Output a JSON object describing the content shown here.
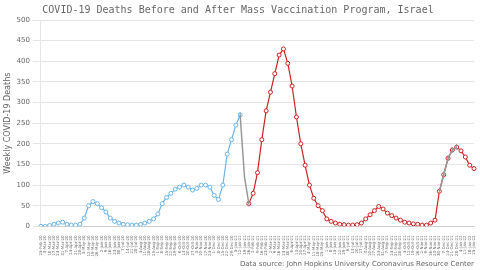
{
  "chart_data": {
    "type": "line",
    "title": "COVID-19 Deaths Before and After Mass Vaccination Program, Israel",
    "ylabel": "Weekly COVID-19 Deaths",
    "annotation": "Data source: John Hopkins University Coronavirus Resource Center",
    "ylim": [
      0,
      500
    ],
    "yticks": [
      0,
      50,
      100,
      150,
      200,
      250,
      300,
      350,
      400,
      450,
      500
    ],
    "grid": true,
    "categories": [
      "25-Feb-20",
      "3-Mar-20",
      "10-Mar-20",
      "17-Mar-20",
      "24-Mar-20",
      "31-Mar-20",
      "7-Apr-20",
      "14-Apr-20",
      "21-Apr-20",
      "28-Apr-20",
      "5-May-20",
      "12-May-20",
      "19-May-20",
      "26-May-20",
      "2-Jun-20",
      "9-Jun-20",
      "16-Jun-20",
      "23-Jun-20",
      "30-Jun-20",
      "7-Jul-20",
      "14-Jul-20",
      "21-Jul-20",
      "28-Jul-20",
      "4-Aug-20",
      "11-Aug-20",
      "18-Aug-20",
      "25-Aug-20",
      "1-Sep-20",
      "8-Sep-20",
      "15-Sep-20",
      "22-Sep-20",
      "29-Sep-20",
      "6-Oct-20",
      "13-Oct-20",
      "20-Oct-20",
      "27-Oct-20",
      "3-Nov-20",
      "10-Nov-20",
      "17-Nov-20",
      "24-Nov-20",
      "1-Dec-20",
      "8-Dec-20",
      "15-Dec-20",
      "22-Dec-20",
      "29-Dec-20",
      "5-Jan-21",
      "12-Jan-21",
      "19-Jan-21",
      "26-Jan-21",
      "2-Feb-21",
      "9-Feb-21",
      "16-Feb-21",
      "23-Feb-21",
      "2-Mar-21",
      "9-Mar-21",
      "16-Mar-21",
      "23-Mar-21",
      "30-Mar-21",
      "6-Apr-21",
      "13-Apr-21",
      "20-Apr-21",
      "27-Apr-21",
      "4-May-21",
      "11-May-21",
      "18-May-21",
      "25-May-21",
      "1-Jun-21",
      "8-Jun-21",
      "15-Jun-21",
      "22-Jun-21",
      "29-Jun-21",
      "6-Jul-21",
      "13-Jul-21",
      "20-Jul-21",
      "27-Jul-21",
      "3-Aug-21",
      "10-Aug-21",
      "17-Aug-21",
      "24-Aug-21",
      "31-Aug-21",
      "7-Sep-21",
      "14-Sep-21",
      "21-Sep-21",
      "28-Sep-21",
      "5-Oct-21",
      "12-Oct-21",
      "19-Oct-21",
      "26-Oct-21",
      "2-Nov-21",
      "9-Nov-21",
      "16-Nov-21",
      "23-Nov-21",
      "30-Nov-21",
      "7-Dec-21",
      "14-Dec-21",
      "21-Dec-21",
      "28-Dec-21",
      "4-Jan-22",
      "11-Jan-22",
      "18-Jan-22",
      "25-Jan-22"
    ],
    "series": [
      {
        "color": "#6ab4e8",
        "marker": "o",
        "values": [
          0,
          0,
          2,
          5,
          8,
          10,
          5,
          3,
          3,
          5,
          20,
          50,
          60,
          55,
          45,
          35,
          20,
          12,
          8,
          5,
          4,
          3,
          3,
          5,
          8,
          12,
          18,
          30,
          55,
          70,
          80,
          90,
          95,
          100,
          95,
          88,
          92,
          100,
          100,
          95,
          75,
          65,
          100,
          175,
          210,
          245,
          270,
          null,
          null,
          null,
          null,
          null,
          null,
          null,
          null,
          null,
          null,
          null,
          null,
          null,
          null,
          null,
          null,
          null,
          null,
          null,
          null,
          null,
          null,
          null,
          null,
          null,
          null,
          null,
          null,
          null,
          null,
          null,
          null,
          null,
          null,
          null,
          null,
          null,
          null,
          null,
          null,
          null,
          null,
          null,
          null,
          null,
          null,
          null,
          null,
          null,
          null,
          null,
          null,
          null,
          null
        ]
      },
      {
        "color": "#999999",
        "marker": "|",
        "values": [
          null,
          null,
          null,
          null,
          null,
          null,
          null,
          null,
          null,
          null,
          null,
          null,
          null,
          null,
          null,
          null,
          null,
          null,
          null,
          null,
          null,
          null,
          null,
          null,
          null,
          null,
          null,
          null,
          null,
          null,
          null,
          null,
          null,
          null,
          null,
          null,
          null,
          null,
          null,
          null,
          null,
          null,
          null,
          null,
          null,
          null,
          270,
          120,
          55,
          null,
          null,
          null,
          null,
          null,
          null,
          null,
          null,
          null,
          null,
          null,
          null,
          null,
          null,
          null,
          null,
          null,
          null,
          null,
          null,
          null,
          null,
          null,
          null,
          null,
          null,
          null,
          null,
          null,
          null,
          null,
          null,
          null,
          null,
          null,
          null,
          null,
          null,
          null,
          null,
          null,
          null,
          null,
          null,
          null,
          null,
          null,
          null,
          null,
          null,
          null,
          null
        ]
      },
      {
        "color": "#cc2222",
        "marker": "o",
        "values": [
          null,
          null,
          null,
          null,
          null,
          null,
          null,
          null,
          null,
          null,
          null,
          null,
          null,
          null,
          null,
          null,
          null,
          null,
          null,
          null,
          null,
          null,
          null,
          null,
          null,
          null,
          null,
          null,
          null,
          null,
          null,
          null,
          null,
          null,
          null,
          null,
          null,
          null,
          null,
          null,
          null,
          null,
          null,
          null,
          null,
          null,
          null,
          null,
          55,
          80,
          130,
          210,
          280,
          325,
          370,
          415,
          430,
          395,
          340,
          265,
          200,
          148,
          100,
          68,
          50,
          38,
          18,
          12,
          8,
          5,
          4,
          3,
          3,
          4,
          8,
          18,
          28,
          38,
          48,
          42,
          32,
          26,
          20,
          15,
          10,
          8,
          6,
          5,
          3,
          3,
          8,
          15,
          85,
          125,
          165,
          185,
          192,
          183,
          168,
          148,
          140
        ]
      },
      {
        "color": "#999999",
        "marker": "|",
        "values": [
          null,
          null,
          null,
          null,
          null,
          null,
          null,
          null,
          null,
          null,
          null,
          null,
          null,
          null,
          null,
          null,
          null,
          null,
          null,
          null,
          null,
          null,
          null,
          null,
          null,
          null,
          null,
          null,
          null,
          null,
          null,
          null,
          null,
          null,
          null,
          null,
          null,
          null,
          null,
          null,
          null,
          null,
          null,
          null,
          null,
          null,
          null,
          null,
          null,
          null,
          null,
          null,
          null,
          null,
          null,
          null,
          null,
          null,
          null,
          null,
          null,
          null,
          null,
          null,
          null,
          null,
          null,
          null,
          null,
          null,
          null,
          null,
          null,
          null,
          null,
          null,
          null,
          null,
          null,
          null,
          null,
          null,
          null,
          null,
          null,
          null,
          null,
          null,
          null,
          null,
          null,
          null,
          85,
          125,
          165,
          185,
          192,
          null,
          null,
          null,
          null
        ]
      }
    ]
  }
}
